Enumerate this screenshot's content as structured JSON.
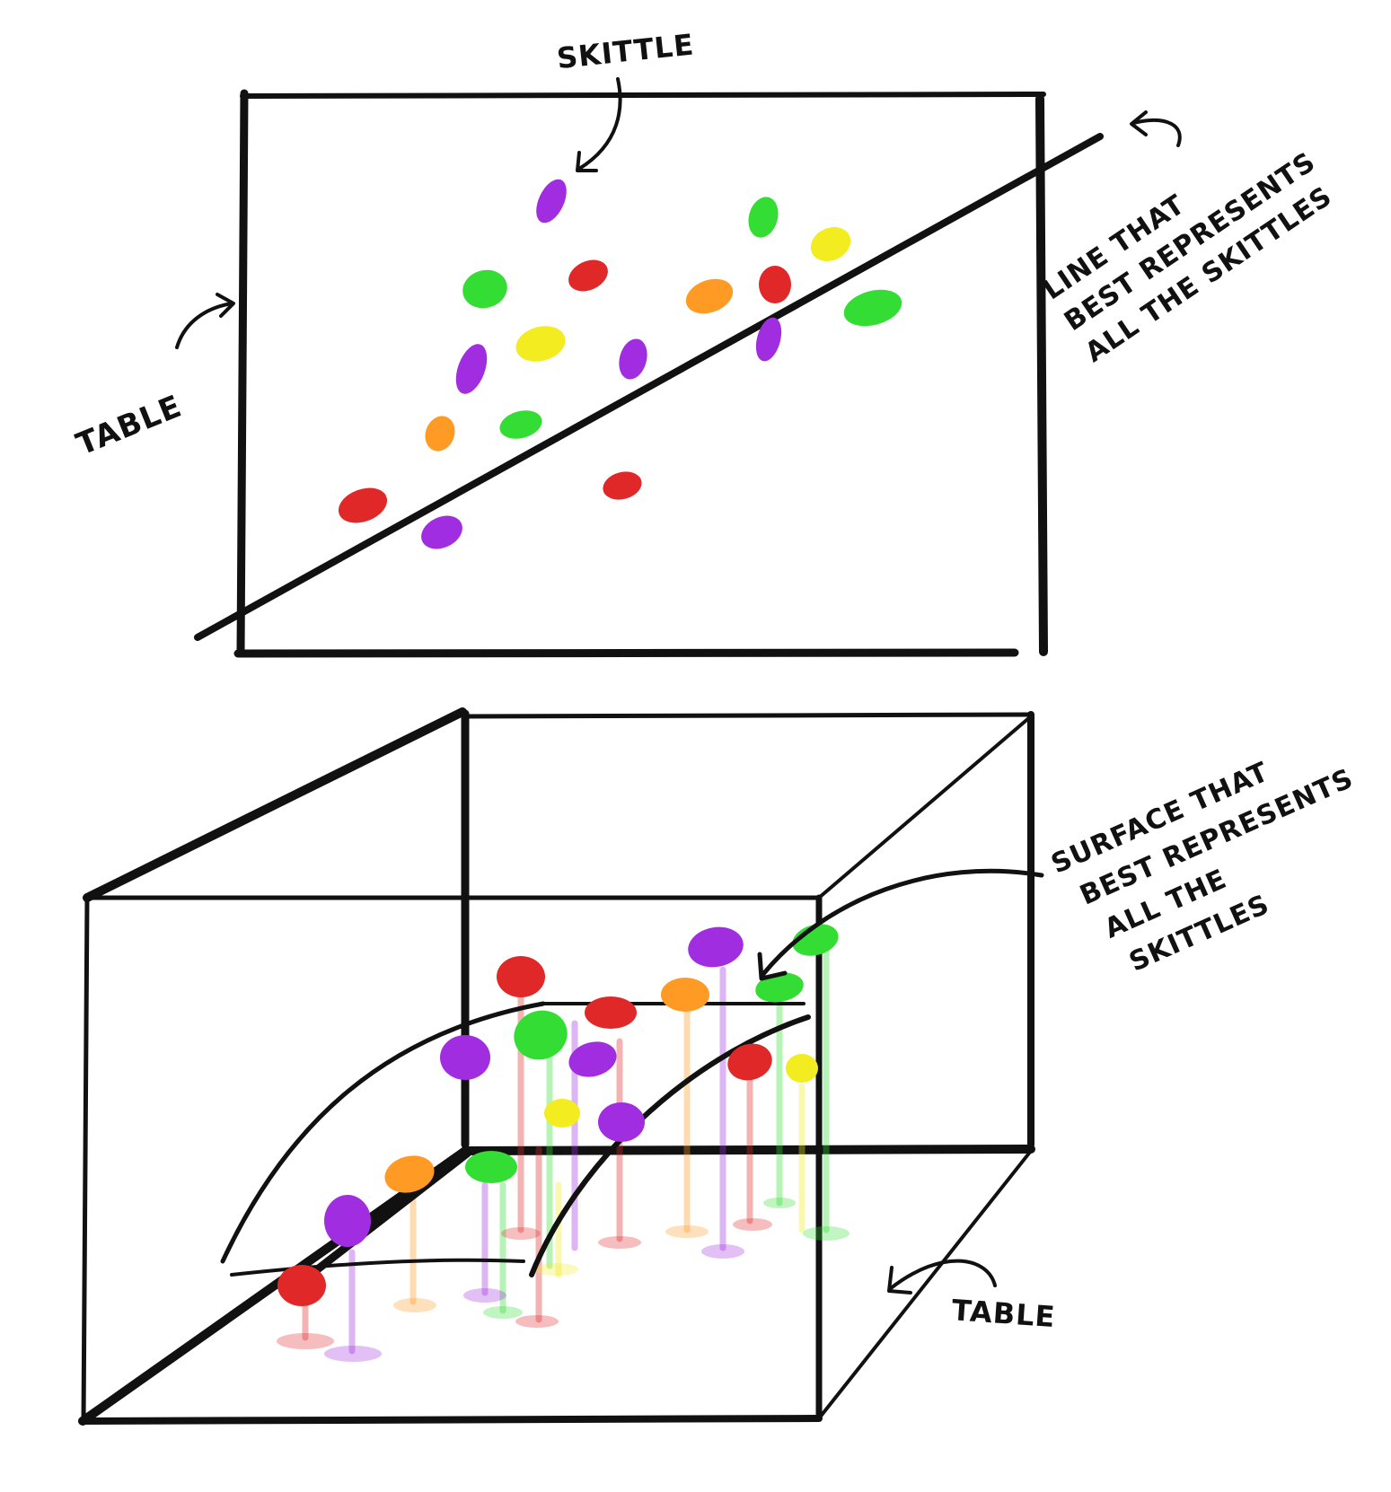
{
  "colors": {
    "ink": "#111111",
    "purple": "#a02ee0",
    "green": "#33dd33",
    "red": "#e02828",
    "yellow": "#f2ec20",
    "orange": "#ff9a25"
  },
  "top_panel": {
    "label_skittle": "SKITTLE",
    "label_table": "TABLE",
    "label_line": [
      "LINE THAT",
      "BEST REPRESENTS",
      "ALL THE SKITTLES"
    ]
  },
  "bottom_panel": {
    "label_surface": [
      "SURFACE THAT",
      "BEST REPRESENTS",
      "ALL THE",
      "SKITTLES"
    ],
    "label_table": "TABLE"
  }
}
